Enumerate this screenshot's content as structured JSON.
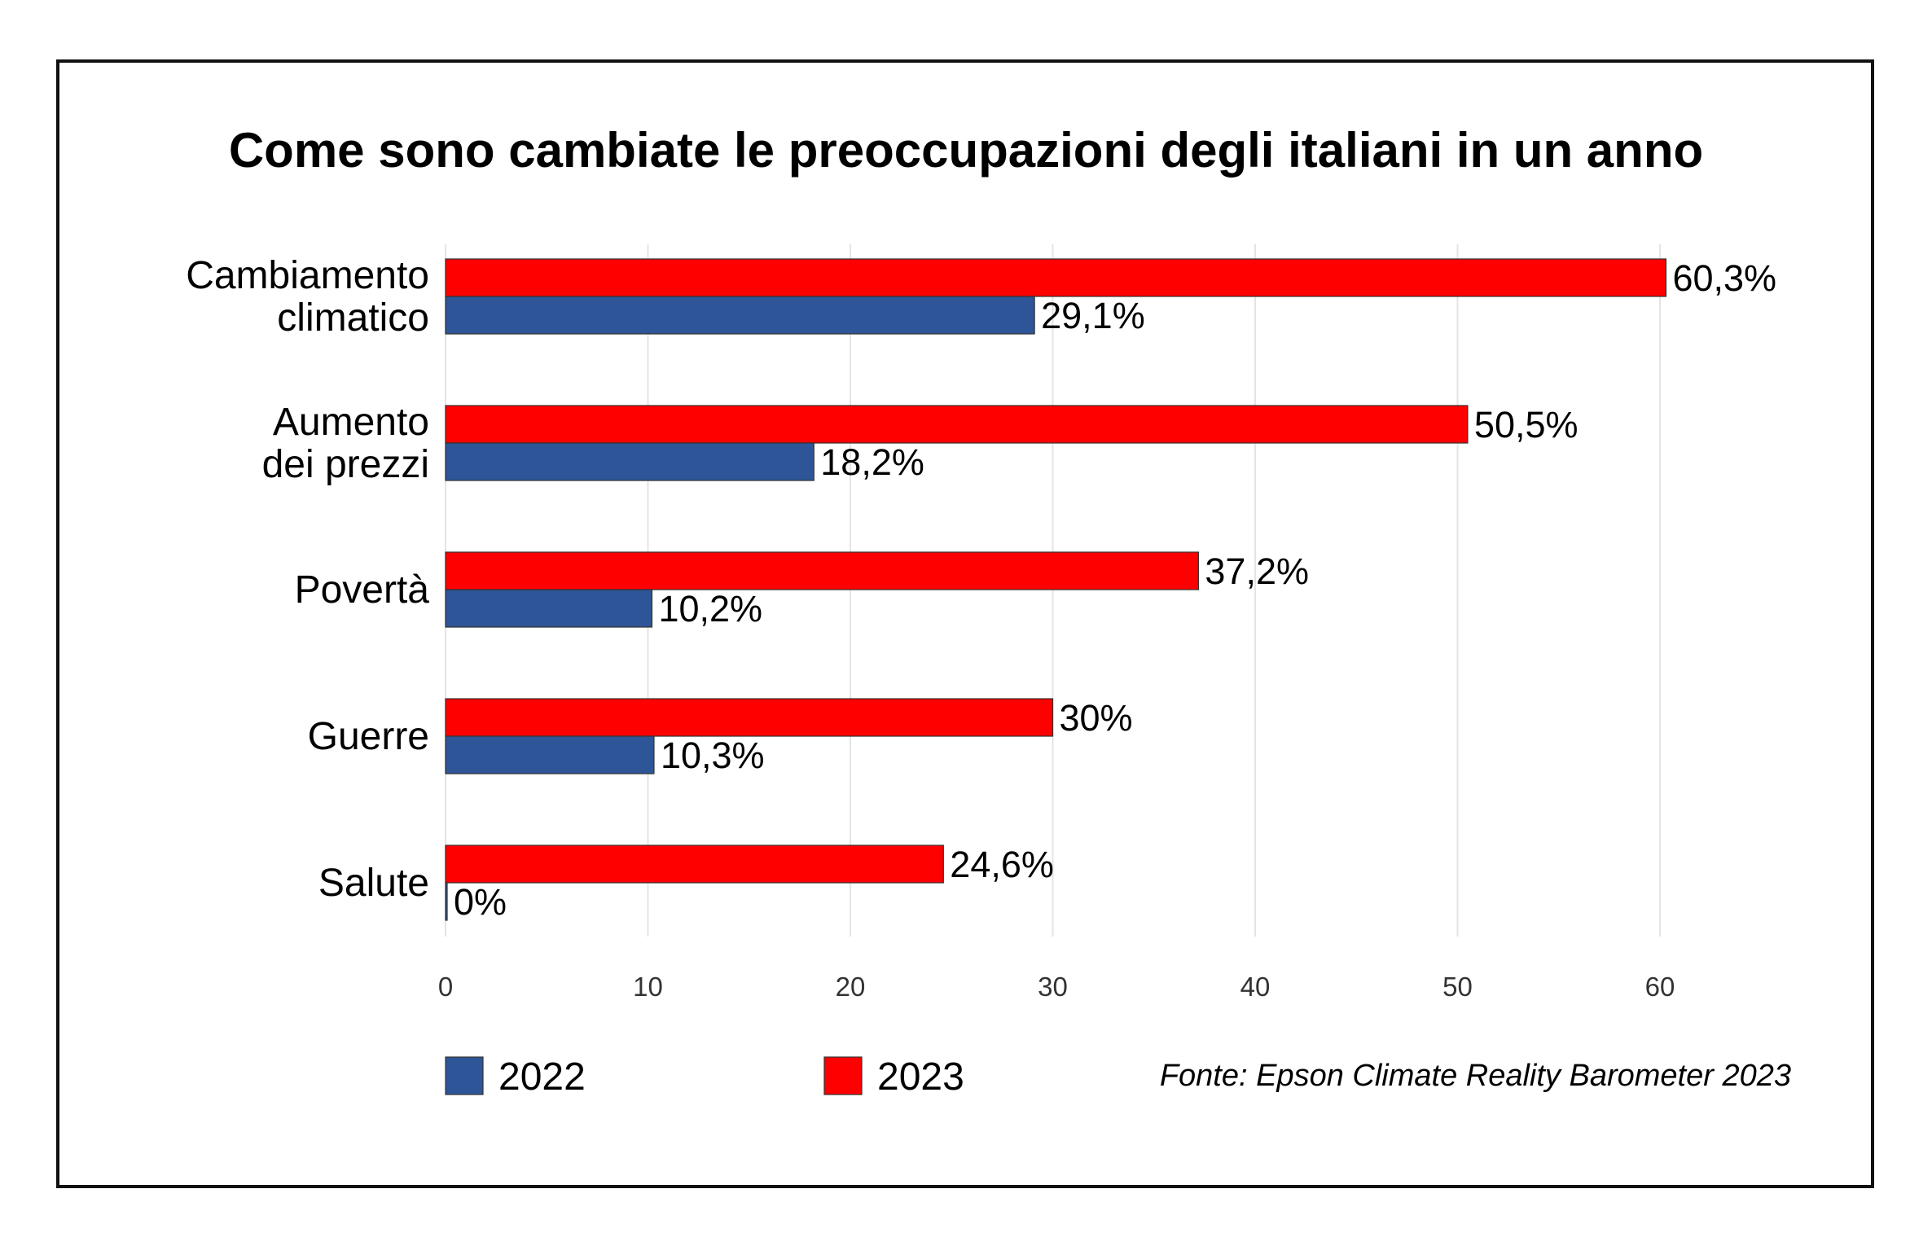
{
  "chart_data": {
    "type": "bar",
    "orientation": "horizontal",
    "title": "Come sono cambiate le preoccupazioni degli italiani in un anno",
    "categories": [
      [
        "Cambiamento",
        "climatico"
      ],
      [
        "Aumento",
        "dei prezzi"
      ],
      [
        "Povertà"
      ],
      [
        "Guerre"
      ],
      [
        "Salute"
      ]
    ],
    "series": [
      {
        "name": "2023",
        "color": "#ff0000",
        "values": [
          60.3,
          50.5,
          37.2,
          30,
          24.6
        ],
        "labels": [
          "60,3%",
          "50,5%",
          "37,2%",
          "30%",
          "24,6%"
        ]
      },
      {
        "name": "2022",
        "color": "#2e5597",
        "values": [
          29.1,
          18.2,
          10.2,
          10.3,
          0
        ],
        "labels": [
          "29,1%",
          "18,2%",
          "10,2%",
          "10,3%",
          "0%"
        ]
      }
    ],
    "xlim": [
      0,
      65
    ],
    "xticks": [
      "0",
      "10",
      "20",
      "30",
      "40",
      "50",
      "60"
    ],
    "grid": true,
    "legend_position": "bottom-left",
    "legend": [
      {
        "name": "2022",
        "color": "#2e5597"
      },
      {
        "name": "2023",
        "color": "#ff0000"
      }
    ],
    "source": "Fonte: Epson Climate Reality Barometer 2023"
  }
}
